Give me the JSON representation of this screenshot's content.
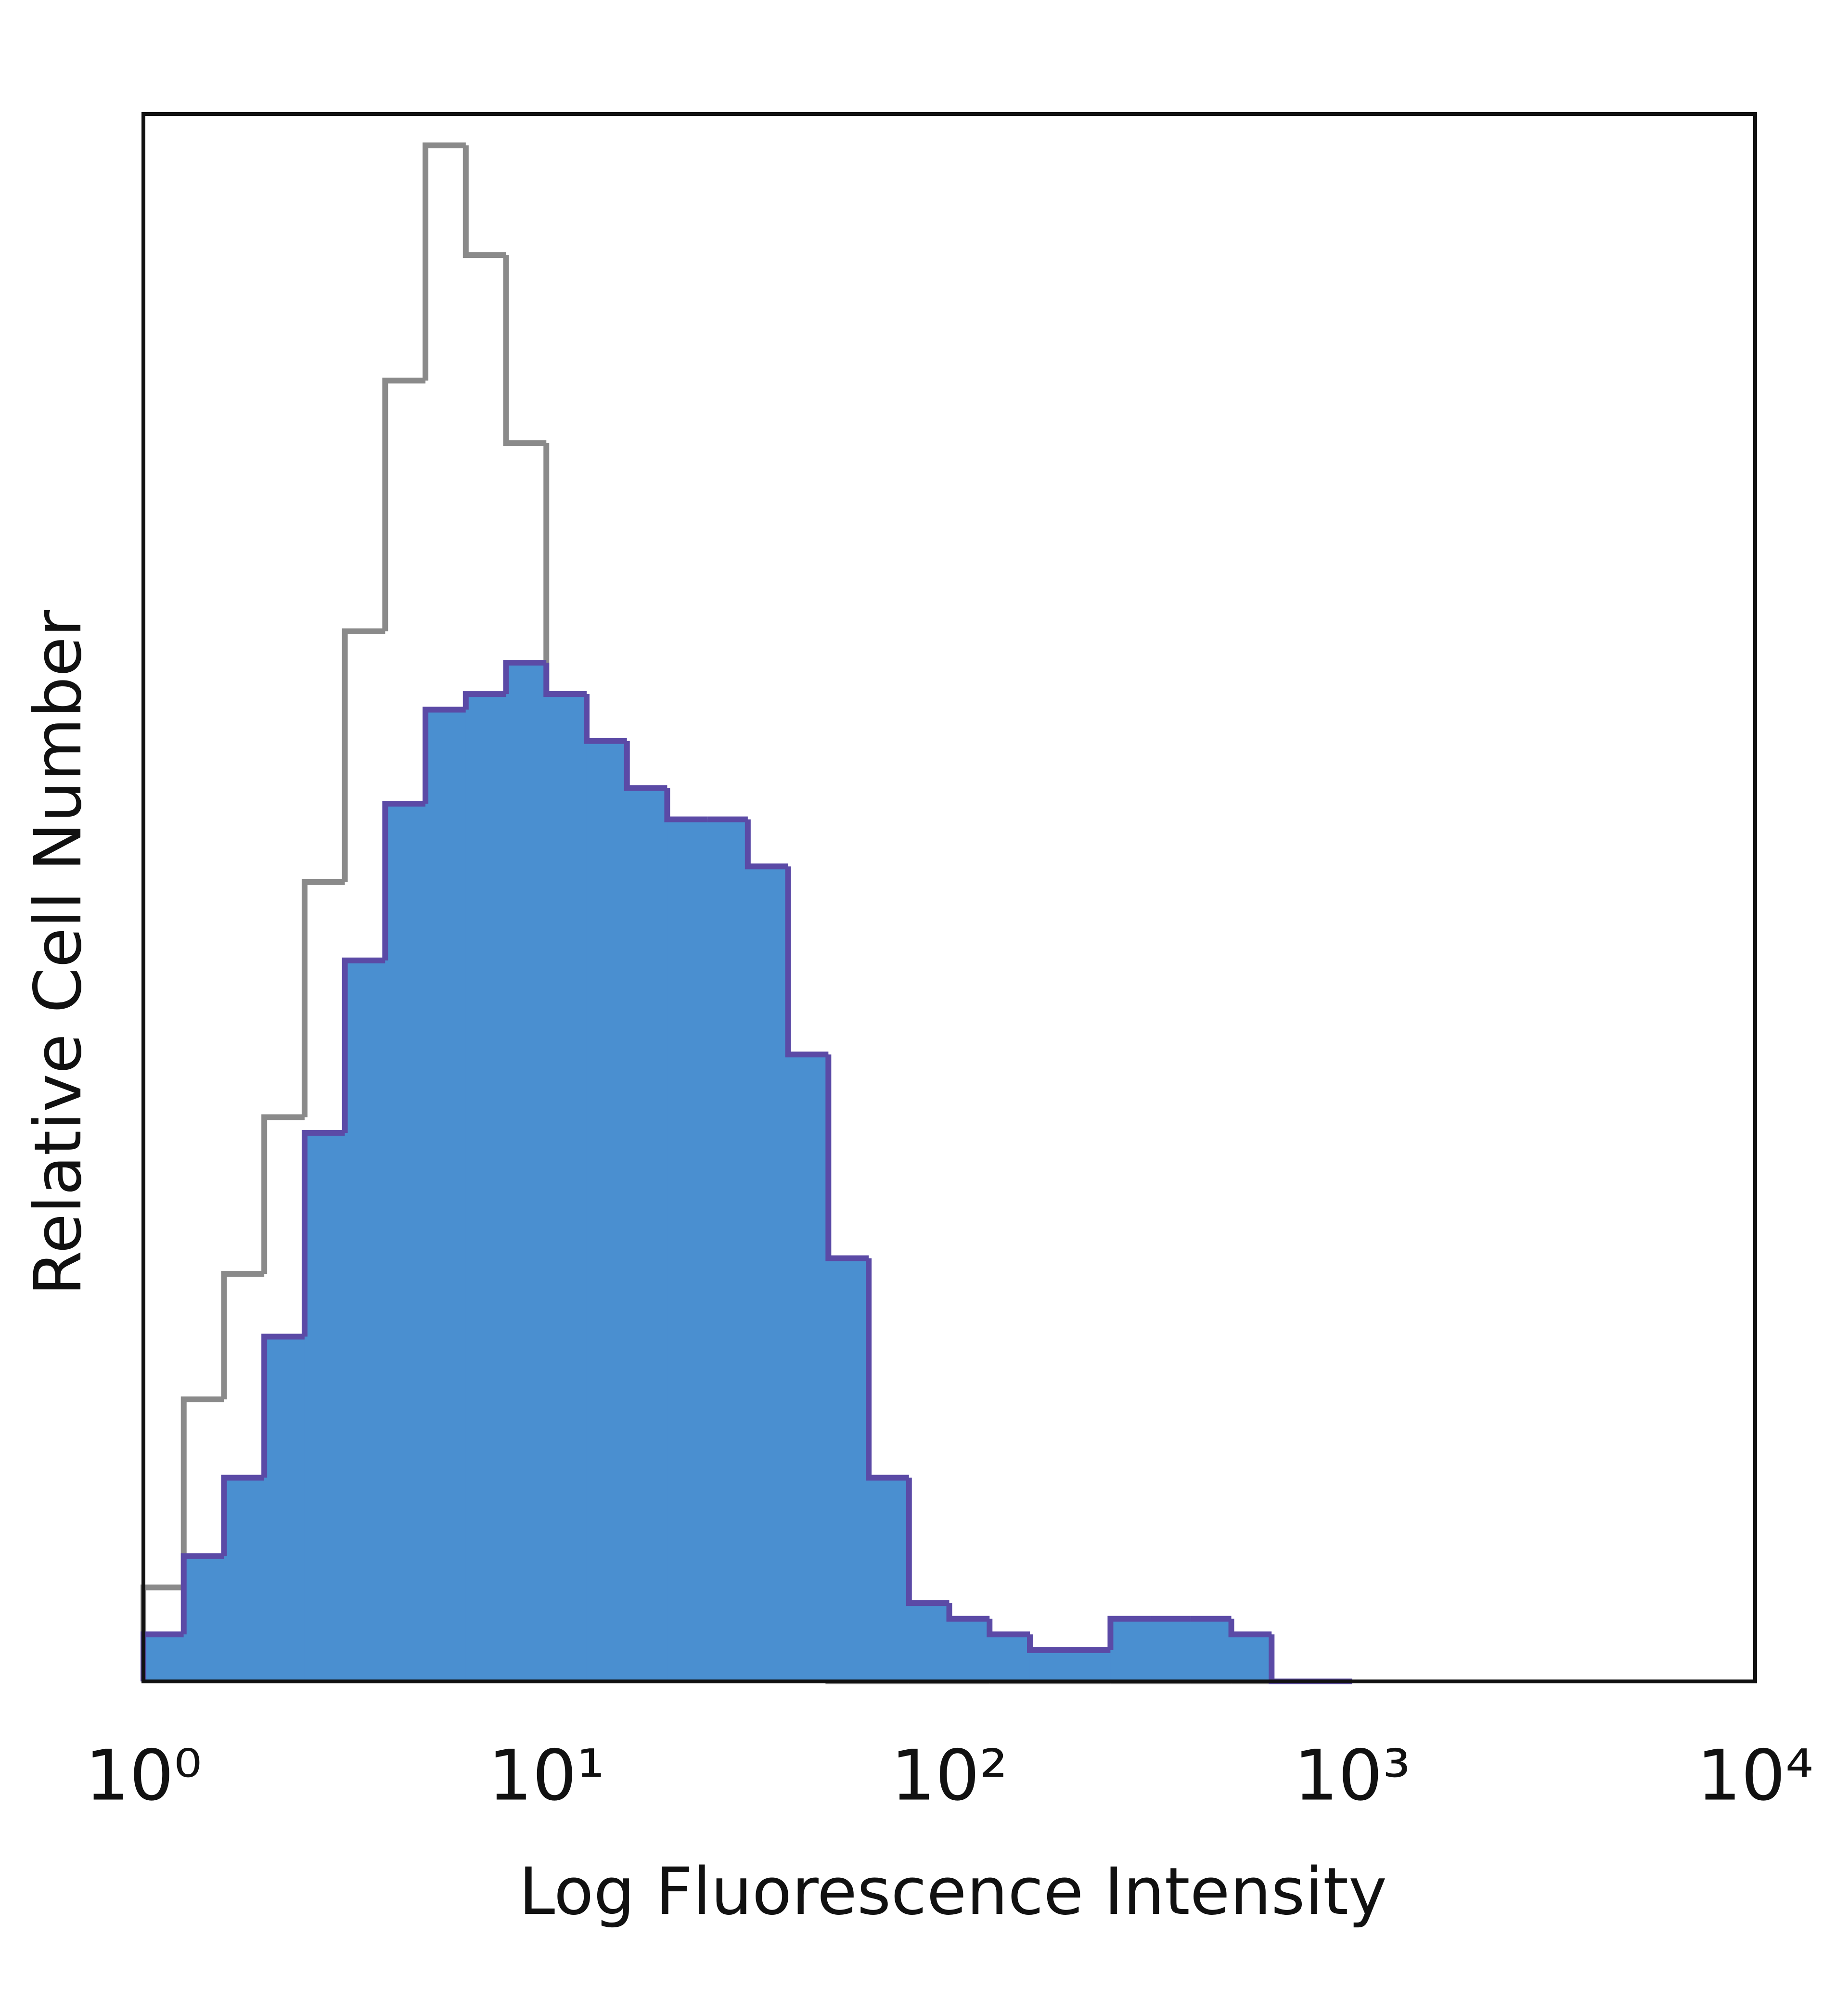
{
  "chart_data": {
    "type": "histogram",
    "xlabel": "Log Fluorescence Intensity",
    "ylabel": "Relative Cell Number",
    "xscale": "log",
    "xlim": [
      1,
      10000
    ],
    "xticks": [
      {
        "value": 1,
        "label": "10⁰"
      },
      {
        "value": 10,
        "label": "10¹"
      },
      {
        "value": 100,
        "label": "10²"
      },
      {
        "value": 1000,
        "label": "10³"
      },
      {
        "value": 10000,
        "label": "10⁴"
      }
    ],
    "ylim": [
      0,
      100
    ],
    "grid": false,
    "bins": [
      1,
      1.259,
      1.585,
      1.995,
      2.512,
      3.162,
      3.981,
      5.012,
      6.31,
      7.943,
      10,
      12.59,
      15.85,
      19.95,
      25.12,
      31.62,
      39.81,
      50.12,
      63.1,
      79.43,
      100,
      125.9,
      158.5,
      199.5,
      251.2,
      316.2,
      398.1,
      501.2,
      631,
      794.3,
      1000
    ],
    "series": [
      {
        "color": "#8a8a8a",
        "filled": false,
        "values": [
          6,
          18,
          26,
          36,
          51,
          67,
          83,
          98,
          91,
          79,
          63,
          43,
          26,
          10,
          4,
          2,
          1,
          0,
          0,
          0,
          0,
          0,
          0,
          0,
          0,
          0,
          0,
          0,
          0,
          0
        ]
      },
      {
        "color": "#5b4aa6",
        "fill": "#4a8fd0",
        "filled": true,
        "values": [
          3,
          8,
          13,
          22,
          35,
          46,
          56,
          62,
          63,
          65,
          63,
          60,
          57,
          55,
          55,
          52,
          40,
          27,
          13,
          5,
          4,
          3,
          2,
          2,
          4,
          4,
          4,
          3,
          0,
          0
        ]
      }
    ]
  }
}
